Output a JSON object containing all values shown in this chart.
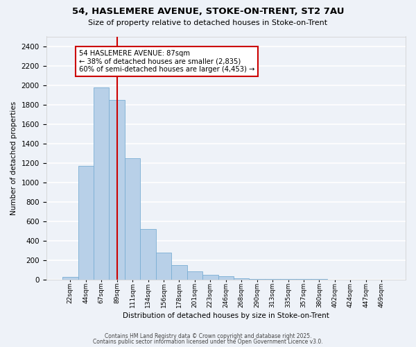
{
  "title": "54, HASLEMERE AVENUE, STOKE-ON-TRENT, ST2 7AU",
  "subtitle": "Size of property relative to detached houses in Stoke-on-Trent",
  "xlabel": "Distribution of detached houses by size in Stoke-on-Trent",
  "ylabel": "Number of detached properties",
  "bar_values": [
    25,
    1170,
    1975,
    1850,
    1250,
    520,
    275,
    150,
    85,
    45,
    35,
    10,
    5,
    2,
    1,
    1,
    1,
    0,
    0,
    0,
    0
  ],
  "bin_labels": [
    "22sqm",
    "44sqm",
    "67sqm",
    "89sqm",
    "111sqm",
    "134sqm",
    "156sqm",
    "178sqm",
    "201sqm",
    "223sqm",
    "246sqm",
    "268sqm",
    "290sqm",
    "313sqm",
    "335sqm",
    "357sqm",
    "380sqm",
    "402sqm",
    "424sqm",
    "447sqm",
    "469sqm"
  ],
  "bar_color": "#b8d0e8",
  "bar_edge_color": "#7aaed4",
  "vline_x_index": 3,
  "vline_color": "#cc0000",
  "annotation_title": "54 HASLEMERE AVENUE: 87sqm",
  "annotation_line1": "← 38% of detached houses are smaller (2,835)",
  "annotation_line2": "60% of semi-detached houses are larger (4,453) →",
  "annotation_box_edge": "#cc0000",
  "ylim": [
    0,
    2500
  ],
  "yticks": [
    0,
    200,
    400,
    600,
    800,
    1000,
    1200,
    1400,
    1600,
    1800,
    2000,
    2200,
    2400
  ],
  "footer1": "Contains HM Land Registry data © Crown copyright and database right 2025.",
  "footer2": "Contains public sector information licensed under the Open Government Licence v3.0.",
  "bg_color": "#eef2f8",
  "grid_color": "#ffffff"
}
